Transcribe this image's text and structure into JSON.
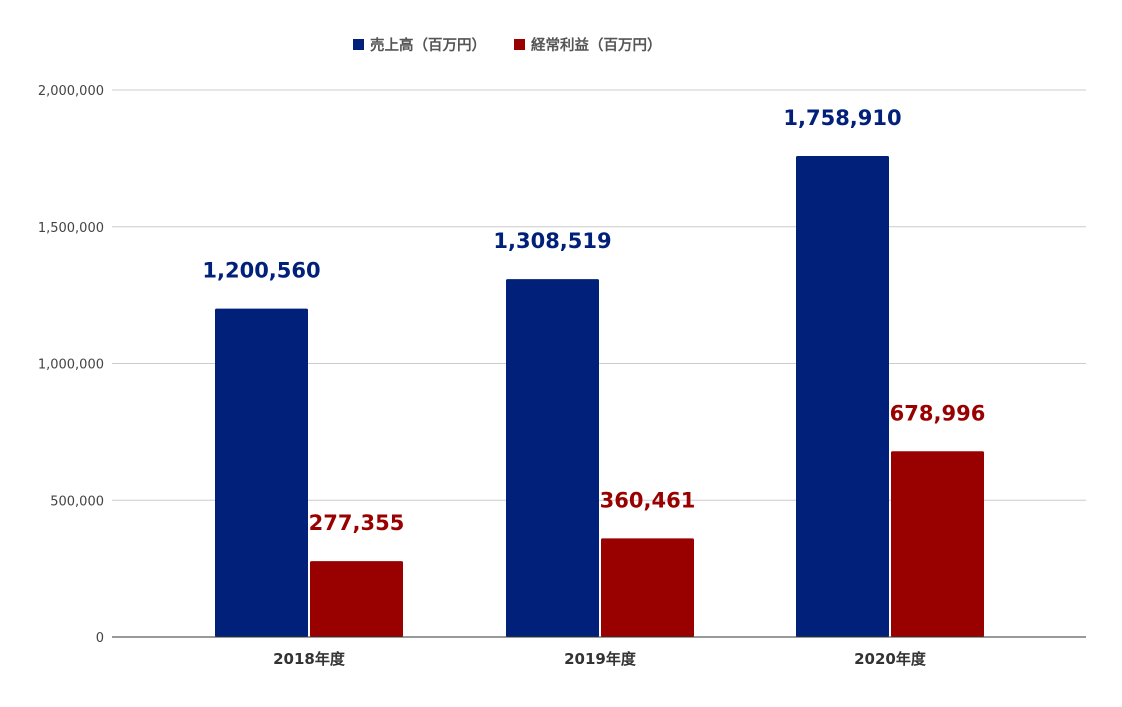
{
  "chart_data": {
    "type": "bar",
    "title": "",
    "xlabel": "",
    "ylabel": "",
    "categories": [
      "2018年度",
      "2019年度",
      "2020年度"
    ],
    "series": [
      {
        "name": "売上高（百万円）",
        "values": [
          1200560,
          1308519,
          1758910
        ],
        "labels": [
          "1,200,560",
          "1,308,519",
          "1,758,910"
        ],
        "color": "#002079"
      },
      {
        "name": "経常利益（百万円）",
        "values": [
          277355,
          360461,
          678996
        ],
        "labels": [
          "277,355",
          "360,461",
          "678,996"
        ],
        "color": "#990000"
      }
    ],
    "ylim": [
      0,
      2000000
    ],
    "y_ticks": [
      0,
      500000,
      1000000,
      1500000,
      2000000
    ],
    "y_tick_labels": [
      "0",
      "500,000",
      "1,000,000",
      "1,500,000",
      "2,000,000"
    ],
    "grid": true,
    "legend_position": "top-center"
  },
  "colors": {
    "grid": "#cccccc",
    "axis": "#333333",
    "tick_text": "#444444",
    "category_text": "#333333",
    "legend_text": "#555555"
  }
}
